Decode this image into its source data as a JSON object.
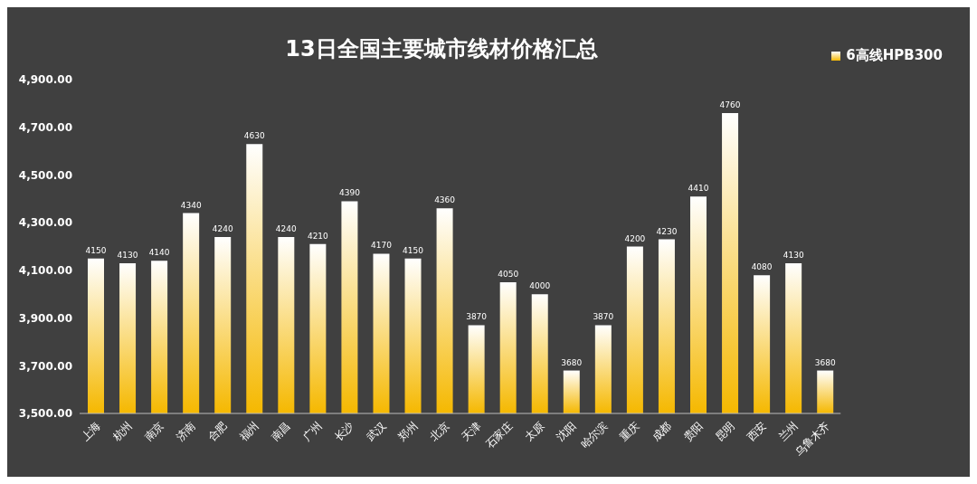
{
  "chart_data": {
    "type": "bar",
    "title": "13日全国主要城市线材价格汇总",
    "categories": [
      "上海",
      "杭州",
      "南京",
      "济南",
      "合肥",
      "福州",
      "南昌",
      "广州",
      "长沙",
      "武汉",
      "郑州",
      "北京",
      "天津",
      "石家庄",
      "太原",
      "沈阳",
      "哈尔滨",
      "重庆",
      "成都",
      "贵阳",
      "昆明",
      "西安",
      "兰州",
      "乌鲁木齐"
    ],
    "series": [
      {
        "name": "6高线HPB300",
        "color": "#f5b800",
        "values": [
          4150,
          4130,
          4140,
          4340,
          4240,
          4630,
          4240,
          4210,
          4390,
          4170,
          4150,
          4360,
          3870,
          4050,
          4000,
          3680,
          3870,
          4200,
          4230,
          4410,
          4760,
          4080,
          4130,
          3680
        ]
      }
    ],
    "ylim": [
      3500,
      4900
    ],
    "yticks": [
      {
        "value": 3500,
        "label": "3,500.00"
      },
      {
        "value": 3700,
        "label": "3,700.00"
      },
      {
        "value": 3900,
        "label": "3,900.00"
      },
      {
        "value": 4100,
        "label": "4,100.00"
      },
      {
        "value": 4300,
        "label": "4,300.00"
      },
      {
        "value": 4500,
        "label": "4,500.00"
      },
      {
        "value": 4700,
        "label": "4,700.00"
      },
      {
        "value": 4900,
        "label": "4,900.00"
      }
    ],
    "grid": false,
    "legend": "top right",
    "data_labels": true
  }
}
